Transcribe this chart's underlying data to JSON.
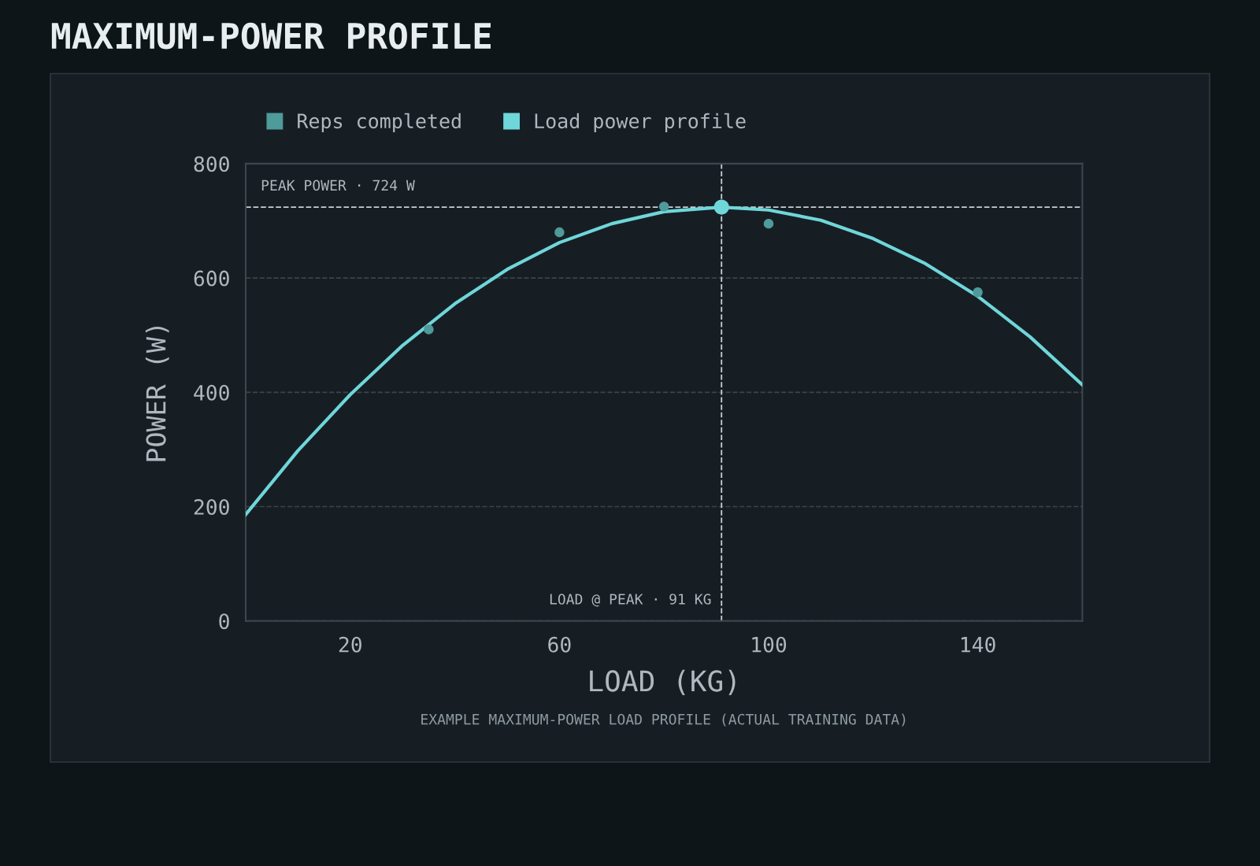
{
  "chart_data": {
    "type": "scatter",
    "title": "MAXIMUM-POWER PROFILE",
    "xlabel": "LOAD (KG)",
    "ylabel": "POWER (W)",
    "xlim": [
      0,
      160
    ],
    "xticks": [
      20,
      60,
      100,
      140
    ],
    "ylim": [
      0,
      800
    ],
    "yticks": [
      0,
      200,
      400,
      600,
      800
    ],
    "grid": "y",
    "legend": "top left",
    "series": [
      {
        "name": "Reps completed",
        "marker": "circle",
        "color": "#4f9a9a",
        "x": [
          35,
          60,
          80,
          100,
          140
        ],
        "values": [
          510,
          680,
          725,
          695,
          575
        ]
      },
      {
        "name": "Load power profile",
        "type": "line",
        "color": "#6fd6d9",
        "line_style": "solid",
        "x": [
          0,
          10,
          20,
          30,
          40,
          50,
          60,
          70,
          80,
          91,
          100,
          110,
          120,
          130,
          140,
          150,
          160
        ],
        "values": [
          186,
          298,
          396,
          482,
          555,
          615,
          662,
          695,
          716,
          724,
          719,
          701,
          669,
          625,
          568,
          497,
          413
        ]
      },
      {
        "marker": "circle",
        "color": "#6fd6d9",
        "x": [
          91
        ],
        "values": [
          724
        ]
      }
    ],
    "ref_lines": [
      {
        "axis": "y",
        "value": 724,
        "label": "PEAK POWER · 724 W",
        "color": "#c8d0d4",
        "line_style": "dashed"
      },
      {
        "axis": "x",
        "value": 91,
        "label": "LOAD @ PEAK · 91 KG",
        "color": "#c8d0d4",
        "line_style": "dashed"
      }
    ],
    "annotations": [
      "EXAMPLE MAXIMUM-POWER LOAD PROFILE (ACTUAL TRAINING DATA)"
    ]
  }
}
